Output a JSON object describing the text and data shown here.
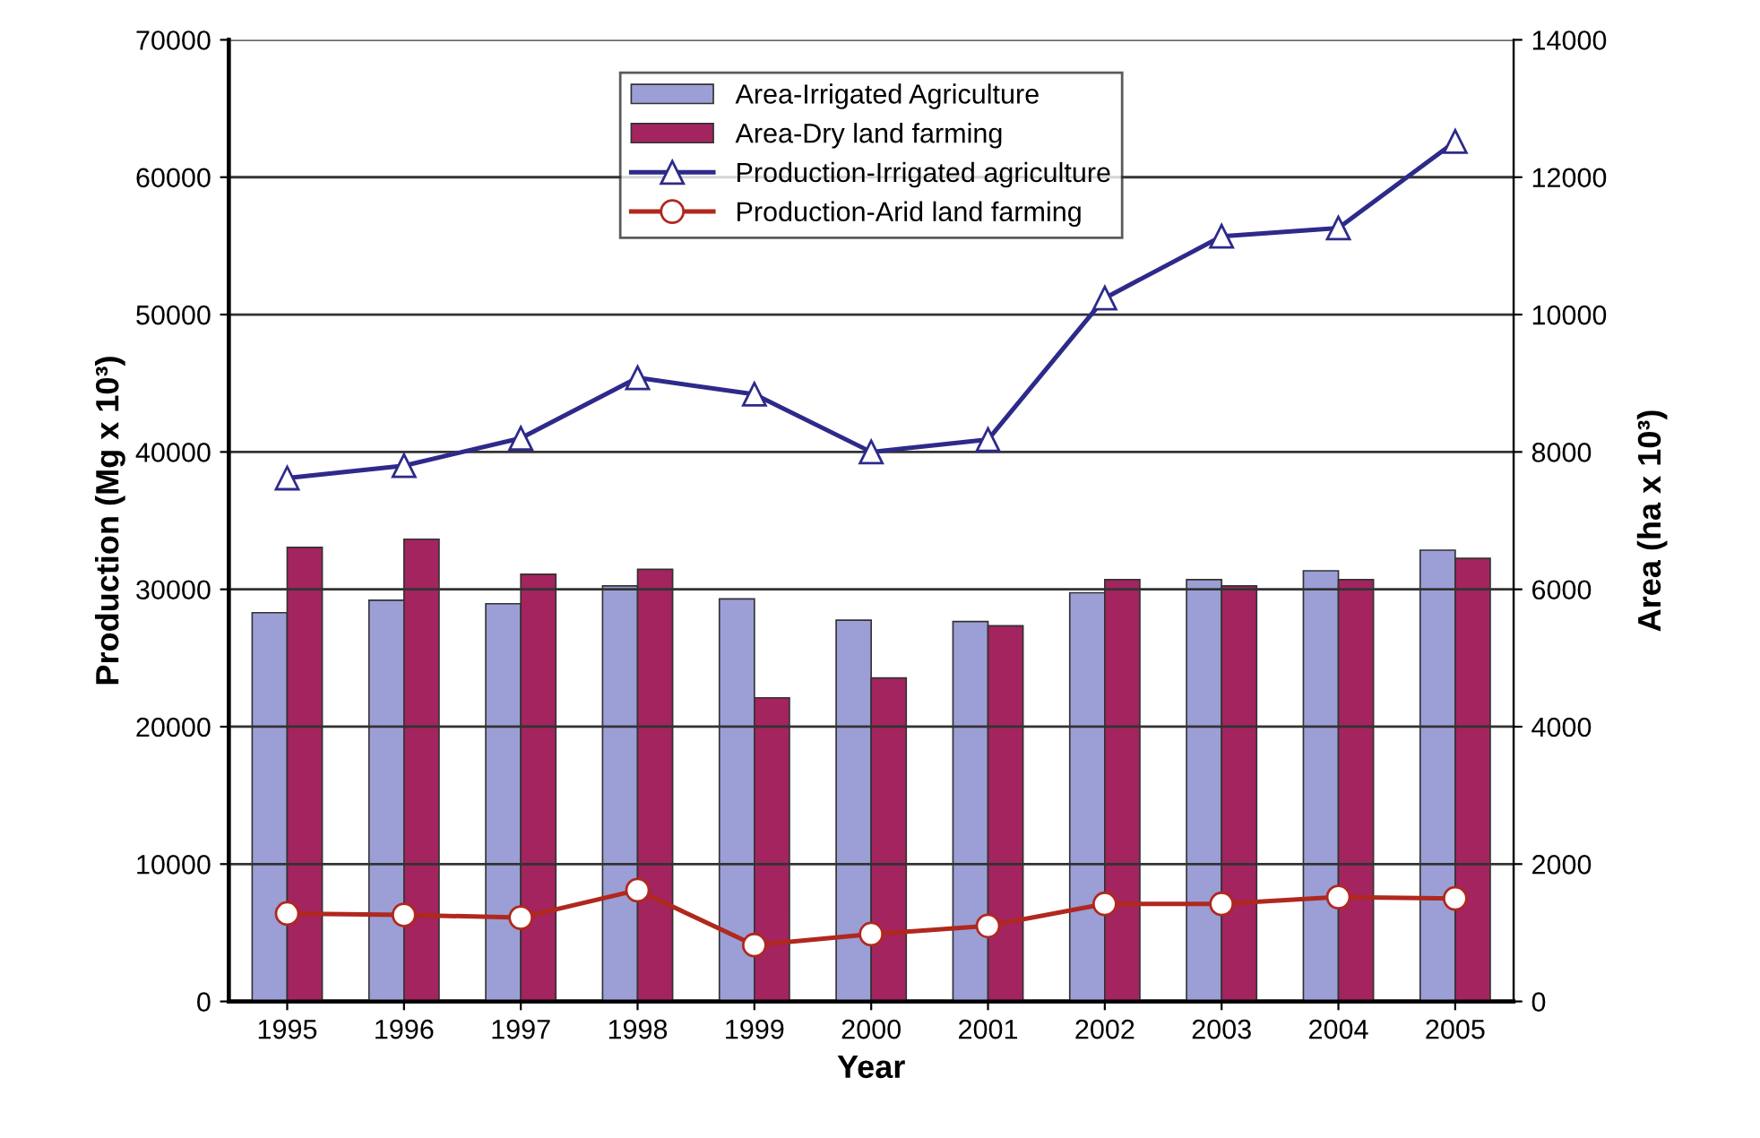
{
  "chart_data": {
    "type": "bar",
    "xlabel": "Year",
    "ylabel": "Production (Mg x 10³)",
    "y2label": "Area (ha x 10³)",
    "categories": [
      "1995",
      "1996",
      "1997",
      "1998",
      "1999",
      "2000",
      "2001",
      "2002",
      "2003",
      "2004",
      "2005"
    ],
    "series": [
      {
        "name": "Area-Irrigated Agriculture",
        "axis": "y2",
        "color": "#9c9ed6",
        "values": [
          5660,
          5840,
          5790,
          6050,
          5860,
          5550,
          5530,
          5950,
          6140,
          6270,
          6570
        ]
      },
      {
        "name": "Area-Dry land farming",
        "axis": "y2",
        "color": "#a3245e",
        "values": [
          6610,
          6730,
          6220,
          6290,
          4420,
          4710,
          5470,
          6140,
          6050,
          6140,
          6450
        ]
      },
      {
        "name": "Production-Irrigated agriculture",
        "type": "line",
        "axis": "y",
        "color": "#2e2a8a",
        "marker": "triangle",
        "values": [
          38100,
          39000,
          41000,
          45400,
          44200,
          40000,
          40900,
          51200,
          55700,
          56300,
          62600
        ]
      },
      {
        "name": "Production-Arid land farming",
        "type": "line",
        "axis": "y",
        "color": "#b0281e",
        "marker": "circle",
        "values": [
          6400,
          6300,
          6100,
          8100,
          4100,
          4900,
          5500,
          7100,
          7100,
          7600,
          7500
        ]
      }
    ],
    "ylim": [
      0,
      70000
    ],
    "yticks": [
      0,
      10000,
      20000,
      30000,
      40000,
      50000,
      60000,
      70000
    ],
    "y2lim": [
      0,
      14000
    ],
    "y2ticks": [
      0,
      2000,
      4000,
      6000,
      8000,
      10000,
      12000,
      14000
    ],
    "grid": "y",
    "legend": "top"
  }
}
